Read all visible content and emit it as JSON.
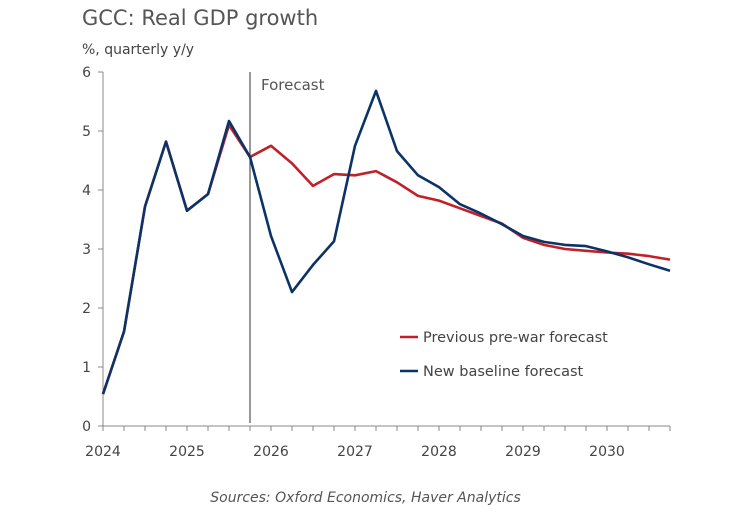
{
  "chart_data": {
    "type": "line",
    "title": "GCC: Real GDP growth",
    "ylabel": "%, quarterly y/y",
    "source": "Sources: Oxford Economics, Haver Analytics",
    "annotation": "Forecast",
    "forecast_start": 2025.75,
    "xlim": [
      2024,
      2030.75
    ],
    "ylim": [
      0,
      6
    ],
    "yticks": [
      0,
      1,
      2,
      3,
      4,
      5,
      6
    ],
    "xticks": [
      "2024",
      "2025",
      "2026",
      "2027",
      "2028",
      "2029",
      "2030"
    ],
    "x_start": 2024,
    "x_step": 0.25,
    "grid": false,
    "legend_placement": "lower-right",
    "series": [
      {
        "name": "Previous pre-war forecast",
        "color": "#c0202a",
        "values": [
          0.54,
          1.6,
          3.72,
          4.82,
          3.65,
          3.93,
          5.1,
          4.56,
          4.75,
          4.45,
          4.07,
          4.27,
          4.25,
          4.32,
          4.13,
          3.9,
          3.82,
          3.69,
          3.56,
          3.43,
          3.19,
          3.07,
          3.0,
          2.97,
          2.94,
          2.92,
          2.88,
          2.82
        ]
      },
      {
        "name": "New baseline forecast",
        "color": "#0b3366",
        "values": [
          0.54,
          1.6,
          3.72,
          4.82,
          3.65,
          3.93,
          5.17,
          4.56,
          3.22,
          2.27,
          2.73,
          3.13,
          4.75,
          5.68,
          4.66,
          4.25,
          4.05,
          3.76,
          3.6,
          3.42,
          3.22,
          3.12,
          3.07,
          3.05,
          2.96,
          2.86,
          2.74,
          2.63
        ]
      }
    ]
  }
}
